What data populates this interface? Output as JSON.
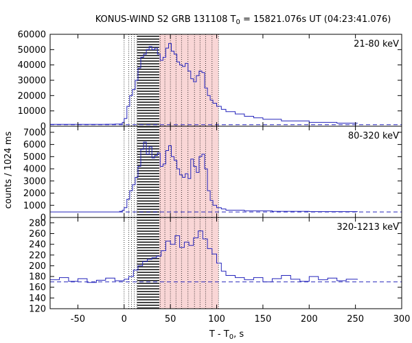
{
  "chart_data": {
    "type": "line",
    "title": {
      "main": "KONUS-WIND S2 GRB 131108 T",
      "sub": "0",
      "rest": " = 15821.076s UT (04:23:41.076)"
    },
    "xlabel": {
      "main": "T - T",
      "sub": "0",
      "rest": ", s"
    },
    "ylabel": "counts / 1024 ms",
    "xlim": [
      -80,
      300
    ],
    "xticks": [
      -50,
      0,
      50,
      100,
      150,
      200,
      250,
      300
    ],
    "colors": {
      "line": "#2222bb",
      "background_line": "#2222bb",
      "shade": "#f9d6d6",
      "hatch": "#444444",
      "axis": "#000000"
    },
    "marker_lines": [
      0,
      5,
      8,
      11,
      14,
      39,
      44,
      50,
      56,
      62,
      69,
      76,
      82,
      88,
      95,
      102
    ],
    "hatched_region": [
      14,
      38
    ],
    "shaded_region": [
      38,
      102
    ],
    "panels": [
      {
        "name": "21-80 keV",
        "ylim": [
          0,
          60000
        ],
        "yticks": [
          0,
          10000,
          20000,
          30000,
          40000,
          50000,
          60000
        ],
        "background": 1000,
        "x": [
          -80,
          -40,
          -20,
          -10,
          -5,
          -2,
          0,
          3,
          6,
          9,
          12,
          15,
          18,
          21,
          24,
          27,
          30,
          33,
          36,
          39,
          42,
          45,
          48,
          51,
          54,
          57,
          60,
          63,
          66,
          69,
          72,
          75,
          78,
          81,
          84,
          87,
          90,
          93,
          96,
          100,
          105,
          110,
          120,
          130,
          140,
          150,
          170,
          200,
          230,
          252
        ],
        "values": [
          1200,
          1200,
          1300,
          1400,
          1500,
          2500,
          5000,
          13000,
          20000,
          24000,
          30000,
          38000,
          45000,
          47000,
          50000,
          52000,
          50000,
          51000,
          47000,
          43000,
          45000,
          51000,
          54000,
          49000,
          47000,
          42000,
          40000,
          39000,
          41000,
          36000,
          31000,
          29000,
          33000,
          36000,
          35000,
          25000,
          20000,
          17000,
          15000,
          13000,
          11000,
          9500,
          8000,
          6500,
          5500,
          4500,
          3500,
          2500,
          2000,
          1800
        ]
      },
      {
        "name": "80-320 keV",
        "ylim": [
          0,
          7500
        ],
        "yticks": [
          0,
          1000,
          2000,
          3000,
          4000,
          5000,
          6000,
          7000
        ],
        "background": 450,
        "x": [
          -80,
          -40,
          -20,
          -10,
          -5,
          -2,
          0,
          3,
          6,
          9,
          12,
          15,
          18,
          21,
          24,
          27,
          30,
          33,
          36,
          39,
          42,
          45,
          48,
          51,
          54,
          57,
          60,
          63,
          66,
          69,
          72,
          75,
          78,
          81,
          84,
          87,
          90,
          93,
          96,
          100,
          105,
          110,
          130,
          160,
          200,
          252
        ],
        "values": [
          450,
          450,
          450,
          450,
          500,
          600,
          800,
          1500,
          2200,
          2700,
          3300,
          4200,
          5600,
          6200,
          5200,
          5800,
          4900,
          5100,
          5300,
          4200,
          4400,
          5500,
          5900,
          5000,
          4700,
          4000,
          3500,
          3300,
          3600,
          3200,
          4800,
          4200,
          3700,
          5000,
          5200,
          4000,
          2200,
          1400,
          1000,
          800,
          700,
          600,
          550,
          500,
          480,
          450
        ]
      },
      {
        "name": "320-1213 keV",
        "ylim": [
          120,
          290
        ],
        "yticks": [
          120,
          140,
          160,
          180,
          200,
          220,
          240,
          260,
          280
        ],
        "background": 170,
        "x": [
          -80,
          -70,
          -60,
          -50,
          -40,
          -30,
          -20,
          -10,
          0,
          5,
          10,
          15,
          20,
          25,
          30,
          35,
          40,
          45,
          50,
          55,
          60,
          65,
          70,
          75,
          80,
          85,
          90,
          95,
          100,
          105,
          110,
          120,
          130,
          140,
          150,
          160,
          170,
          180,
          190,
          200,
          210,
          220,
          230,
          240,
          252
        ],
        "values": [
          174,
          178,
          171,
          176,
          169,
          173,
          177,
          172,
          175,
          180,
          192,
          200,
          208,
          212,
          215,
          218,
          228,
          246,
          240,
          256,
          234,
          244,
          238,
          252,
          265,
          250,
          232,
          222,
          205,
          190,
          182,
          178,
          174,
          178,
          170,
          176,
          182,
          175,
          171,
          180,
          174,
          177,
          172,
          175,
          174
        ]
      }
    ]
  }
}
